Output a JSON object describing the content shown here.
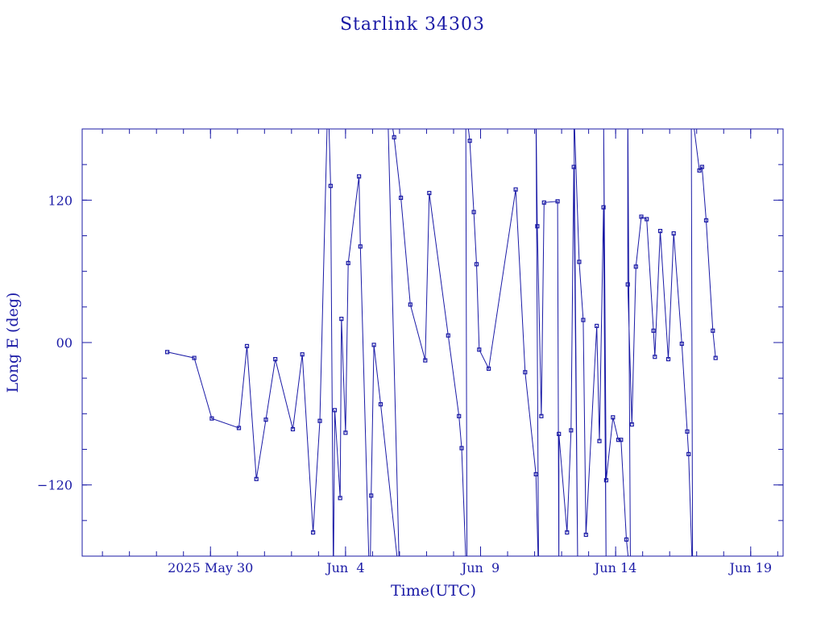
{
  "chart_data": {
    "type": "line",
    "title": "Starlink 34303",
    "xlabel": "Time(UTC)",
    "ylabel": "Long E (deg)",
    "x_unit": "day of 2025",
    "xlim": [
      145.25,
      171.2
    ],
    "ylim": [
      -180,
      180
    ],
    "x_ticks": [
      {
        "label": "2025 May 30",
        "value": 150
      },
      {
        "label": "Jun  4",
        "value": 155
      },
      {
        "label": "Jun  9",
        "value": 160
      },
      {
        "label": "Jun 14",
        "value": 165
      },
      {
        "label": "Jun 19",
        "value": 170
      }
    ],
    "y_ticks": [
      {
        "label": "−120",
        "value": -120
      },
      {
        "label": "00",
        "value": 0
      },
      {
        "label": "120",
        "value": 120
      }
    ],
    "x_minor_step": 1,
    "y_minor_step": 30,
    "grid": false,
    "marker": "square",
    "series": [
      {
        "points": [
          [
            148.4,
            -8
          ],
          [
            149.4,
            -13
          ],
          [
            150.05,
            -64
          ],
          [
            151.05,
            -72
          ],
          [
            151.35,
            -3
          ],
          [
            151.7,
            -115
          ],
          [
            152.05,
            -65
          ],
          [
            152.4,
            -14
          ],
          [
            153.05,
            -73
          ],
          [
            153.4,
            -10
          ],
          [
            153.8,
            -160
          ],
          [
            154.05,
            -66
          ],
          [
            154.35,
            212
          ],
          [
            154.45,
            132
          ],
          [
            154.55,
            -200
          ],
          [
            154.6,
            -57
          ],
          [
            154.8,
            -131
          ],
          [
            154.85,
            20
          ],
          [
            155.0,
            -76
          ],
          [
            155.1,
            67
          ],
          [
            155.5,
            140
          ],
          [
            155.55,
            81
          ],
          [
            155.9,
            -215
          ],
          [
            155.95,
            -129
          ],
          [
            156.05,
            -2
          ],
          [
            156.3,
            -52
          ],
          [
            157.0,
            -200
          ],
          [
            156.55,
            210
          ],
          [
            156.8,
            173
          ],
          [
            157.05,
            122
          ],
          [
            157.4,
            32
          ],
          [
            157.95,
            -15
          ],
          [
            158.1,
            126
          ],
          [
            158.8,
            6
          ],
          [
            159.2,
            -62
          ],
          [
            159.3,
            -89
          ],
          [
            159.5,
            -210
          ],
          [
            159.45,
            200
          ],
          [
            159.6,
            170
          ],
          [
            159.75,
            110
          ],
          [
            159.85,
            66
          ],
          [
            159.95,
            -6
          ],
          [
            160.3,
            -22
          ],
          [
            161.3,
            129
          ],
          [
            161.65,
            -25
          ],
          [
            162.05,
            -111
          ],
          [
            162.15,
            -200
          ],
          [
            162.05,
            200
          ],
          [
            162.1,
            98
          ],
          [
            162.25,
            -62
          ],
          [
            162.35,
            118
          ],
          [
            162.85,
            119
          ],
          [
            162.9,
            -200
          ],
          [
            162.9,
            -77
          ],
          [
            163.2,
            -160
          ],
          [
            163.35,
            -74
          ],
          [
            163.45,
            148
          ],
          [
            163.6,
            -200
          ],
          [
            163.45,
            200
          ],
          [
            163.65,
            68
          ],
          [
            163.8,
            19
          ],
          [
            163.9,
            -162
          ],
          [
            164.3,
            14
          ],
          [
            164.4,
            -83
          ],
          [
            164.55,
            114
          ],
          [
            164.65,
            -200
          ],
          [
            164.55,
            200
          ],
          [
            164.65,
            -116
          ],
          [
            164.9,
            -63
          ],
          [
            165.1,
            -82
          ],
          [
            165.2,
            -82
          ],
          [
            165.4,
            -166
          ],
          [
            165.55,
            -200
          ],
          [
            165.45,
            200
          ],
          [
            165.45,
            49
          ],
          [
            165.6,
            -69
          ],
          [
            165.75,
            64
          ],
          [
            165.95,
            106
          ],
          [
            166.15,
            104
          ],
          [
            166.4,
            10
          ],
          [
            166.45,
            -12
          ],
          [
            166.65,
            94
          ],
          [
            166.95,
            -14
          ],
          [
            167.15,
            92
          ],
          [
            167.45,
            -1
          ],
          [
            167.65,
            -75
          ],
          [
            167.7,
            -94
          ],
          [
            167.85,
            -200
          ],
          [
            167.8,
            200
          ],
          [
            168.1,
            145
          ],
          [
            168.2,
            148
          ],
          [
            168.35,
            103
          ],
          [
            168.6,
            10
          ],
          [
            168.7,
            -13
          ]
        ]
      }
    ]
  }
}
